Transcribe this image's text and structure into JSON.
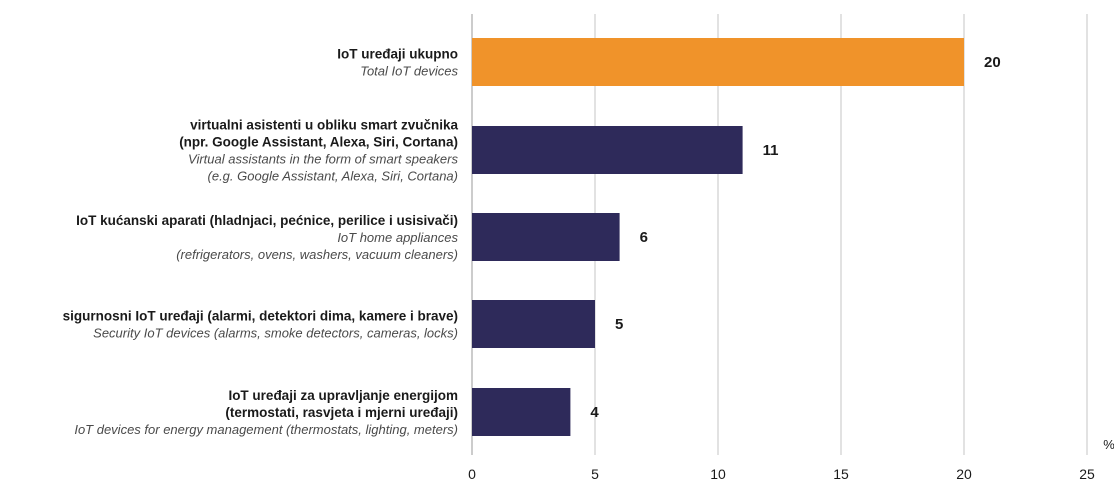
{
  "chart_data": {
    "type": "bar",
    "orientation": "horizontal",
    "unit": "%",
    "xlim": [
      0,
      25
    ],
    "xticks": [
      0,
      5,
      10,
      15,
      20,
      25
    ],
    "grid": true,
    "highlight_color": "#f0932a",
    "bar_color": "#2e2a5a",
    "categories": [
      {
        "lines": [
          "IoT uređaji ukupno"
        ],
        "italic_lines": [
          "Total IoT devices"
        ],
        "value": 20,
        "highlight": true
      },
      {
        "lines": [
          "virtualni asistenti u obliku smart zvučnika",
          "(npr. Google Assistant, Alexa, Siri, Cortana)"
        ],
        "italic_lines": [
          "Virtual assistants in the form of smart speakers",
          "(e.g. Google Assistant, Alexa, Siri, Cortana)"
        ],
        "value": 11,
        "highlight": false
      },
      {
        "lines": [
          "IoT kućanski aparati (hladnjaci, pećnice, perilice i usisivači)"
        ],
        "italic_lines": [
          "IoT home appliances",
          "(refrigerators, ovens, washers, vacuum cleaners)"
        ],
        "value": 6,
        "highlight": false
      },
      {
        "lines": [
          "sigurnosni IoT uređaji (alarmi, detektori dima, kamere i brave)"
        ],
        "italic_lines": [
          "Security IoT devices (alarms, smoke detectors, cameras, locks)"
        ],
        "value": 5,
        "highlight": false
      },
      {
        "lines": [
          "IoT uređaji za upravljanje energijom",
          "(termostati, rasvjeta i mjerni uređaji)"
        ],
        "italic_lines": [
          "IoT devices for energy management (thermostats, lighting, meters)"
        ],
        "value": 4,
        "highlight": false
      }
    ]
  }
}
